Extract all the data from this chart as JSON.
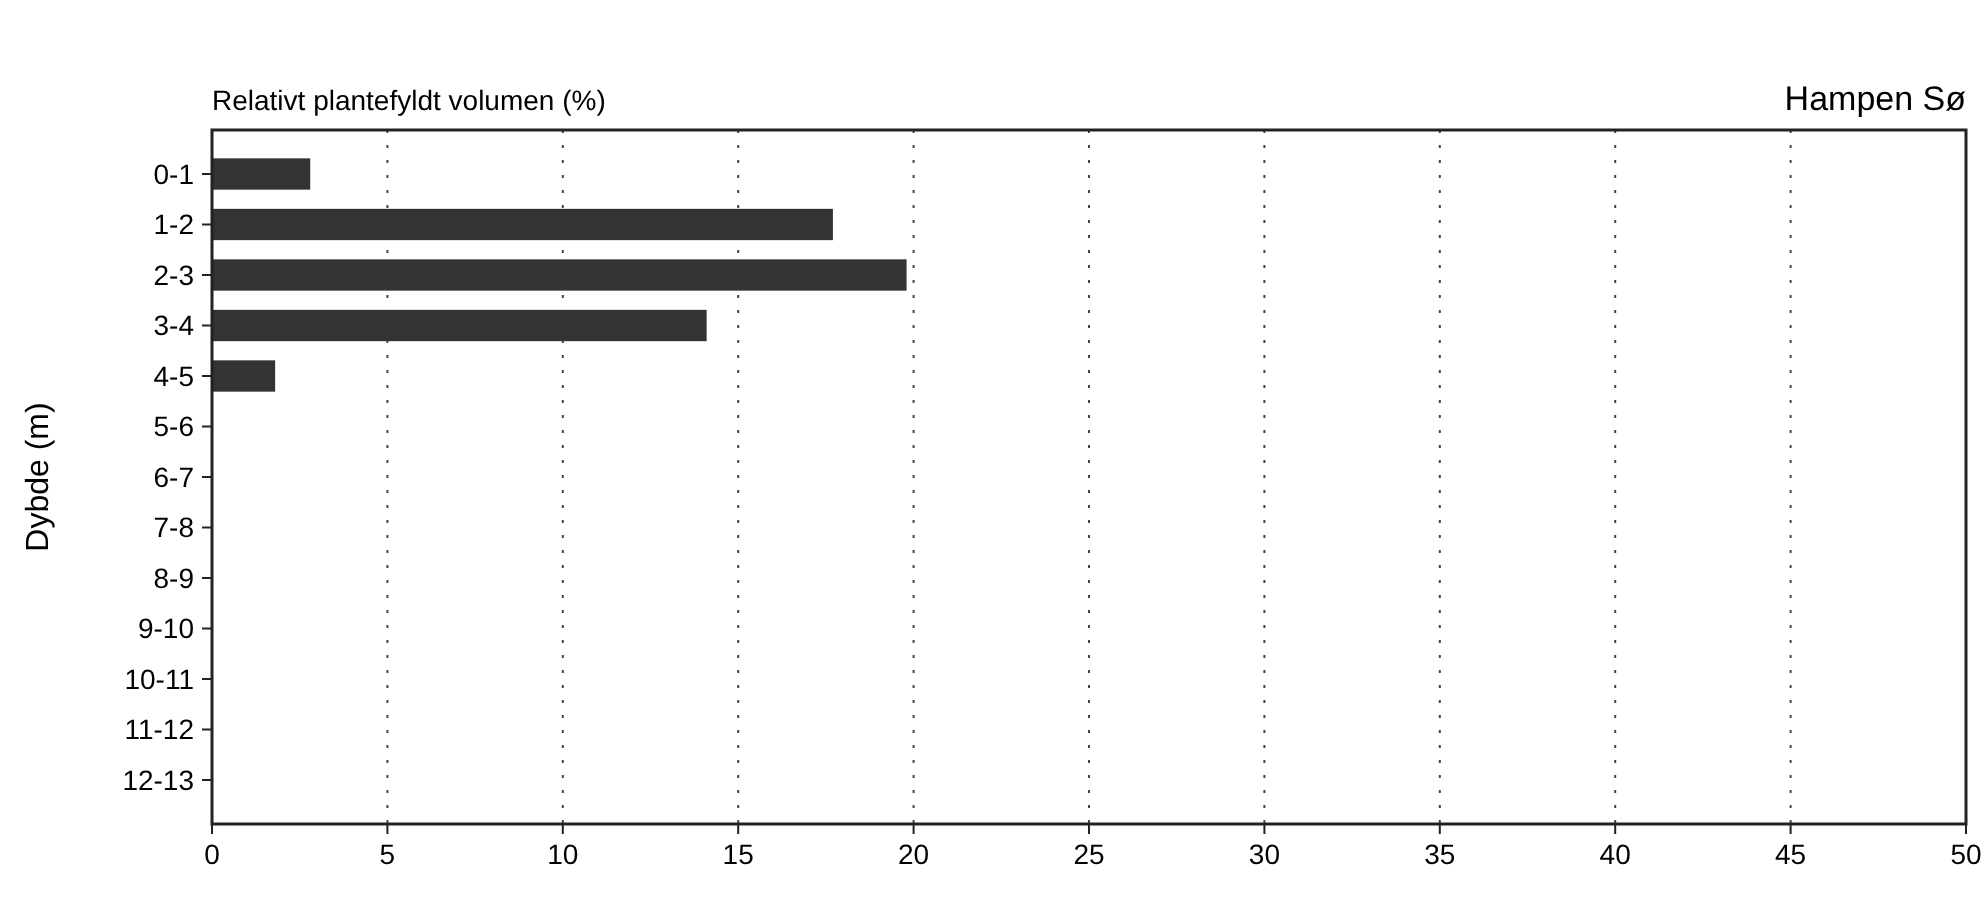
{
  "chart_data": {
    "type": "bar",
    "orientation": "horizontal",
    "title": "Relativt plantefyldt volumen (%)",
    "subtitle": "Hampen Sø",
    "ylabel": "Dybde (m)",
    "categories": [
      "0-1",
      "1-2",
      "2-3",
      "3-4",
      "4-5",
      "5-6",
      "6-7",
      "7-8",
      "8-9",
      "9-10",
      "10-11",
      "11-12",
      "12-13"
    ],
    "values": [
      2.8,
      17.7,
      19.8,
      14.1,
      1.8,
      null,
      null,
      null,
      null,
      null,
      null,
      null,
      null
    ],
    "color": "#333333",
    "xlim": [
      0,
      50
    ],
    "xticks": [
      0,
      5,
      10,
      15,
      20,
      25,
      30,
      35,
      40,
      45,
      50
    ],
    "grid": "x"
  }
}
